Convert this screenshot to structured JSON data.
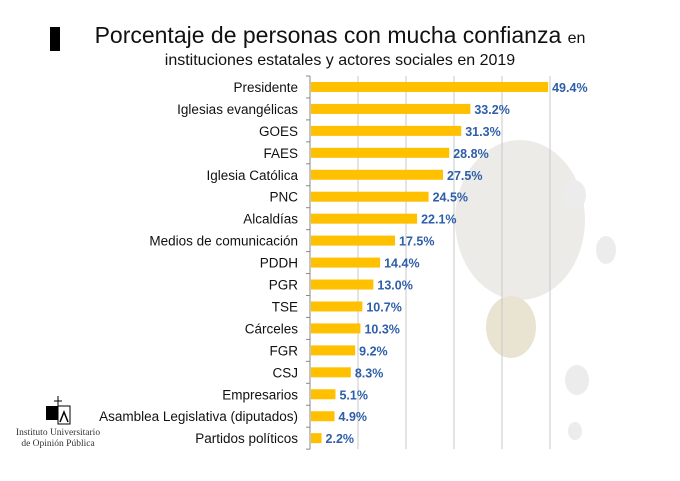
{
  "title": {
    "main": "Porcentaje de personas con mucha confianza",
    "suffix": "en",
    "line2": "instituciones estatales y actores sociales en 2019"
  },
  "logo": {
    "line1": "Instituto Universitario",
    "line2": "de Opinión Pública",
    "mark": "IUDOP"
  },
  "colors": {
    "bar": "#FFC000",
    "value": "#2E5FA8"
  },
  "chart_data": {
    "type": "bar",
    "orientation": "horizontal",
    "title": "Porcentaje de personas con mucha confianza en instituciones estatales y actores sociales en 2019",
    "categories": [
      "Presidente",
      "Iglesias evangélicas",
      "GOES",
      "FAES",
      "Iglesia Católica",
      "PNC",
      "Alcaldías",
      "Medios de comunicación",
      "PDDH",
      "PGR",
      "TSE",
      "Cárceles",
      "FGR",
      "CSJ",
      "Empresarios",
      "Asamblea Legislativa (diputados)",
      "Partidos políticos"
    ],
    "values": [
      49.4,
      33.2,
      31.3,
      28.8,
      27.5,
      24.5,
      22.1,
      17.5,
      14.4,
      13.0,
      10.7,
      10.3,
      9.2,
      8.3,
      5.1,
      4.9,
      2.2
    ],
    "value_labels": [
      "49.4%",
      "33.2%",
      "31.3%",
      "28.8%",
      "27.5%",
      "24.5%",
      "22.1%",
      "17.5%",
      "14.4%",
      "13.0%",
      "10.7%",
      "10.3%",
      "9.2%",
      "8.3%",
      "5.1%",
      "4.9%",
      "2.2%"
    ],
    "xlim": [
      0,
      50
    ],
    "grid": true,
    "xlabel": "",
    "ylabel": ""
  }
}
